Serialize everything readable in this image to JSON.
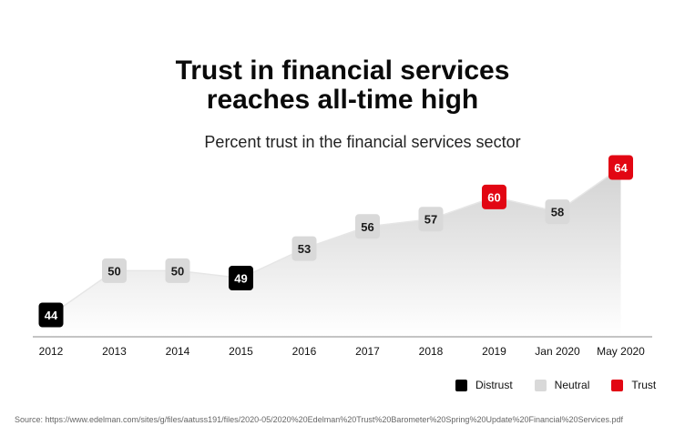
{
  "chart_data": {
    "type": "area",
    "title_line1": "Trust in financial services",
    "title_line2": "reaches all-time high",
    "subtitle": "Percent trust in the financial services sector",
    "categories": [
      "2012",
      "2013",
      "2014",
      "2015",
      "2016",
      "2017",
      "2018",
      "2019",
      "Jan 2020",
      "May 2020"
    ],
    "values": [
      44,
      50,
      50,
      49,
      53,
      56,
      57,
      60,
      58,
      64
    ],
    "status": [
      "distrust",
      "neutral",
      "neutral",
      "distrust",
      "neutral",
      "neutral",
      "neutral",
      "trust",
      "neutral",
      "trust"
    ],
    "ylim": [
      40,
      65
    ],
    "legend": [
      {
        "key": "distrust",
        "label": "Distrust",
        "color": "#000000"
      },
      {
        "key": "neutral",
        "label": "Neutral",
        "color": "#d9d9d9"
      },
      {
        "key": "trust",
        "label": "Trust",
        "color": "#e20613"
      }
    ],
    "source": "Source: https://www.edelman.com/sites/g/files/aatuss191/files/2020-05/2020%20Edelman%20Trust%20Barometer%20Spring%20Update%20Financial%20Services.pdf"
  }
}
